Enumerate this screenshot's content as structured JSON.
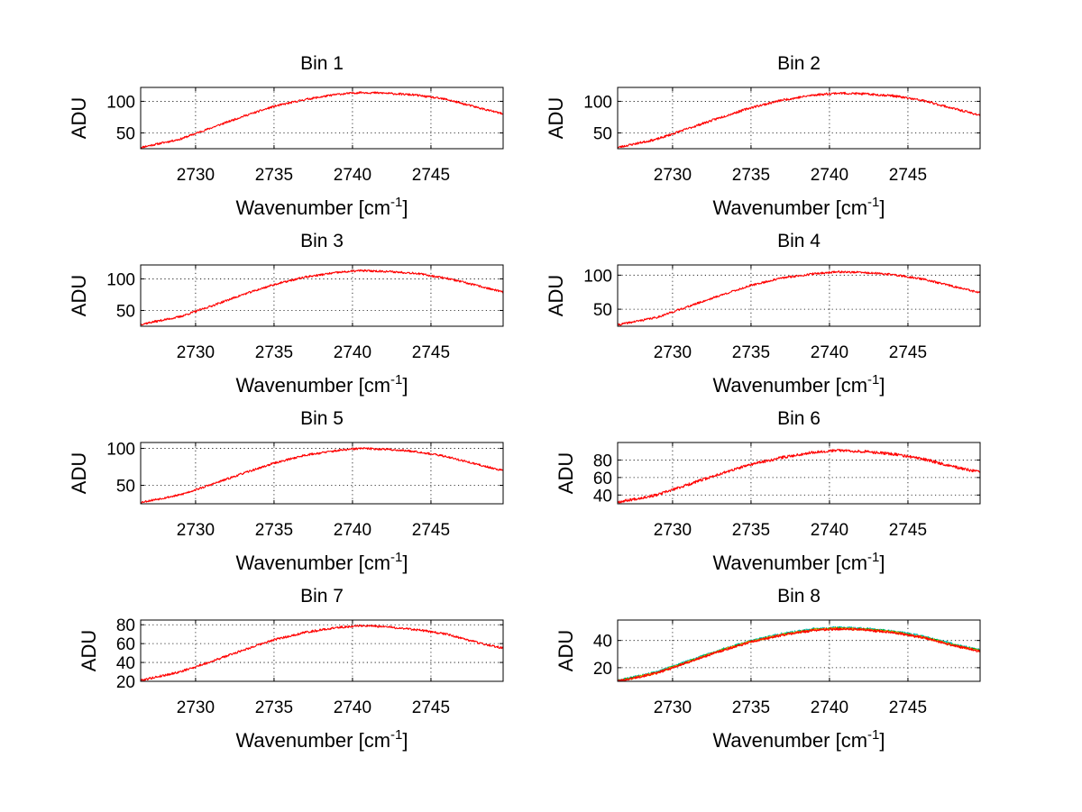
{
  "chart_data": [
    {
      "type": "line",
      "title": "Bin 1",
      "xlabel": "Wavenumber [cm",
      "xlabel_sup": "-1",
      "xlabel_end": "]",
      "ylabel": "ADU",
      "xlim": [
        2726.5,
        2749.6
      ],
      "ylim": [
        25,
        122
      ],
      "xticks": [
        2730,
        2735,
        2740,
        2745
      ],
      "yticks": [
        50,
        100
      ],
      "grid": true,
      "series": [
        {
          "color": "#ff0000",
          "points": [
            [
              2726.5,
              27
            ],
            [
              2729,
              40
            ],
            [
              2731,
              58
            ],
            [
              2733,
              76
            ],
            [
              2735,
              92
            ],
            [
              2737,
              103
            ],
            [
              2739,
              111
            ],
            [
              2740.5,
              114
            ],
            [
              2742,
              113
            ],
            [
              2744,
              110
            ],
            [
              2746,
              103
            ],
            [
              2748,
              90
            ],
            [
              2749.6,
              80
            ]
          ],
          "noise": 1.6,
          "seed": 11
        }
      ]
    },
    {
      "type": "line",
      "title": "Bin 2",
      "xlabel": "Wavenumber [cm",
      "xlabel_sup": "-1",
      "xlabel_end": "]",
      "ylabel": "ADU",
      "xlim": [
        2726.5,
        2749.6
      ],
      "ylim": [
        25,
        122
      ],
      "xticks": [
        2730,
        2735,
        2740,
        2745
      ],
      "yticks": [
        50,
        100
      ],
      "grid": true,
      "series": [
        {
          "color": "#ff0000",
          "points": [
            [
              2726.5,
              27
            ],
            [
              2729,
              40
            ],
            [
              2731,
              57
            ],
            [
              2733,
              74
            ],
            [
              2735,
              90
            ],
            [
              2737,
              102
            ],
            [
              2739,
              110
            ],
            [
              2740.5,
              113
            ],
            [
              2742,
              112
            ],
            [
              2744,
              109
            ],
            [
              2746,
              101
            ],
            [
              2748,
              88
            ],
            [
              2749.6,
              78
            ]
          ],
          "noise": 1.8,
          "seed": 23
        }
      ]
    },
    {
      "type": "line",
      "title": "Bin 3",
      "xlabel": "Wavenumber [cm",
      "xlabel_sup": "-1",
      "xlabel_end": "]",
      "ylabel": "ADU",
      "xlim": [
        2726.5,
        2749.6
      ],
      "ylim": [
        25,
        122
      ],
      "xticks": [
        2730,
        2735,
        2740,
        2745
      ],
      "yticks": [
        50,
        100
      ],
      "grid": true,
      "series": [
        {
          "color": "#ff0000",
          "points": [
            [
              2726.5,
              28
            ],
            [
              2729,
              40
            ],
            [
              2731,
              57
            ],
            [
              2733,
              75
            ],
            [
              2735,
              91
            ],
            [
              2737,
              103
            ],
            [
              2739,
              110
            ],
            [
              2740.5,
              113
            ],
            [
              2742,
              112
            ],
            [
              2744,
              109
            ],
            [
              2746,
              101
            ],
            [
              2748,
              89
            ],
            [
              2749.6,
              79
            ]
          ],
          "noise": 1.6,
          "seed": 37
        }
      ]
    },
    {
      "type": "line",
      "title": "Bin 4",
      "xlabel": "Wavenumber [cm",
      "xlabel_sup": "-1",
      "xlabel_end": "]",
      "ylabel": "ADU",
      "xlim": [
        2726.5,
        2749.6
      ],
      "ylim": [
        25,
        115
      ],
      "xticks": [
        2730,
        2735,
        2740,
        2745
      ],
      "yticks": [
        50,
        100
      ],
      "grid": true,
      "series": [
        {
          "color": "#ff0000",
          "points": [
            [
              2726.5,
              27
            ],
            [
              2729,
              38
            ],
            [
              2731,
              54
            ],
            [
              2733,
              70
            ],
            [
              2735,
              85
            ],
            [
              2737,
              96
            ],
            [
              2739,
              102
            ],
            [
              2740.5,
              105
            ],
            [
              2742,
              104
            ],
            [
              2744,
              101
            ],
            [
              2746,
              94
            ],
            [
              2748,
              83
            ],
            [
              2749.6,
              74
            ]
          ],
          "noise": 1.5,
          "seed": 41
        }
      ]
    },
    {
      "type": "line",
      "title": "Bin 5",
      "xlabel": "Wavenumber [cm",
      "xlabel_sup": "-1",
      "xlabel_end": "]",
      "ylabel": "ADU",
      "xlim": [
        2726.5,
        2749.6
      ],
      "ylim": [
        25,
        108
      ],
      "xticks": [
        2730,
        2735,
        2740,
        2745
      ],
      "yticks": [
        50,
        100
      ],
      "grid": true,
      "series": [
        {
          "color": "#ff0000",
          "points": [
            [
              2726.5,
              27
            ],
            [
              2729,
              37
            ],
            [
              2731,
              51
            ],
            [
              2733,
              66
            ],
            [
              2735,
              80
            ],
            [
              2737,
              91
            ],
            [
              2739,
              97
            ],
            [
              2740.5,
              100
            ],
            [
              2742,
              99
            ],
            [
              2744,
              96
            ],
            [
              2746,
              89
            ],
            [
              2748,
              78
            ],
            [
              2749.6,
              70
            ]
          ],
          "noise": 1.4,
          "seed": 53
        }
      ]
    },
    {
      "type": "line",
      "title": "Bin 6",
      "xlabel": "Wavenumber [cm",
      "xlabel_sup": "-1",
      "xlabel_end": "]",
      "ylabel": "ADU",
      "xlim": [
        2726.5,
        2749.6
      ],
      "ylim": [
        30,
        100
      ],
      "xticks": [
        2730,
        2735,
        2740,
        2745
      ],
      "yticks": [
        40,
        60,
        80
      ],
      "grid": true,
      "series": [
        {
          "color": "#ff0000",
          "points": [
            [
              2726.5,
              32
            ],
            [
              2729,
              40
            ],
            [
              2731,
              52
            ],
            [
              2733,
              64
            ],
            [
              2735,
              75
            ],
            [
              2737,
              83
            ],
            [
              2739,
              89
            ],
            [
              2740.5,
              91
            ],
            [
              2742,
              90
            ],
            [
              2744,
              87
            ],
            [
              2746,
              81
            ],
            [
              2748,
              72
            ],
            [
              2749.6,
              66
            ]
          ],
          "noise": 1.6,
          "seed": 67
        }
      ]
    },
    {
      "type": "line",
      "title": "Bin 7",
      "xlabel": "Wavenumber [cm",
      "xlabel_sup": "-1",
      "xlabel_end": "]",
      "ylabel": "ADU",
      "xlim": [
        2726.5,
        2749.6
      ],
      "ylim": [
        20,
        85
      ],
      "xticks": [
        2730,
        2735,
        2740,
        2745
      ],
      "yticks": [
        20,
        40,
        60,
        80
      ],
      "grid": true,
      "series": [
        {
          "color": "#ff0000",
          "points": [
            [
              2726.5,
              21
            ],
            [
              2729,
              30
            ],
            [
              2731,
              41
            ],
            [
              2733,
              53
            ],
            [
              2735,
              64
            ],
            [
              2737,
              72
            ],
            [
              2739,
              77
            ],
            [
              2740.5,
              79
            ],
            [
              2742,
              78
            ],
            [
              2744,
              75
            ],
            [
              2746,
              70
            ],
            [
              2748,
              61
            ],
            [
              2749.6,
              55
            ]
          ],
          "noise": 1.2,
          "seed": 79
        }
      ]
    },
    {
      "type": "line",
      "title": "Bin 8",
      "xlabel": "Wavenumber [cm",
      "xlabel_sup": "-1",
      "xlabel_end": "]",
      "ylabel": "ADU",
      "xlim": [
        2726.5,
        2749.6
      ],
      "ylim": [
        10,
        55
      ],
      "xticks": [
        2730,
        2735,
        2740,
        2745
      ],
      "yticks": [
        20,
        40
      ],
      "grid": true,
      "series": [
        {
          "color": "#00bfbf",
          "points": [
            [
              2726.5,
              10.5
            ],
            [
              2729,
              17
            ],
            [
              2731,
              25
            ],
            [
              2733,
              33
            ],
            [
              2735,
              40
            ],
            [
              2737,
              45
            ],
            [
              2739,
              48.5
            ],
            [
              2740.5,
              49.5
            ],
            [
              2742,
              49
            ],
            [
              2744,
              47
            ],
            [
              2746,
              43
            ],
            [
              2748,
              37
            ],
            [
              2749.6,
              33
            ]
          ],
          "noise": 0.8,
          "seed": 83
        },
        {
          "color": "#00aa00",
          "points": [
            [
              2726.5,
              10.3
            ],
            [
              2729,
              16.5
            ],
            [
              2731,
              24.5
            ],
            [
              2733,
              32.5
            ],
            [
              2735,
              39.5
            ],
            [
              2737,
              44.5
            ],
            [
              2739,
              48
            ],
            [
              2740.5,
              49
            ],
            [
              2742,
              48.5
            ],
            [
              2744,
              46.5
            ],
            [
              2746,
              42.5
            ],
            [
              2748,
              36.5
            ],
            [
              2749.6,
              32.5
            ]
          ],
          "noise": 0.8,
          "seed": 89
        },
        {
          "color": "#ff8c00",
          "points": [
            [
              2726.5,
              10.1
            ],
            [
              2729,
              16.2
            ],
            [
              2731,
              24.2
            ],
            [
              2733,
              32.2
            ],
            [
              2735,
              39.2
            ],
            [
              2737,
              44.2
            ],
            [
              2739,
              47.8
            ],
            [
              2740.5,
              48.8
            ],
            [
              2742,
              48.3
            ],
            [
              2744,
              46.3
            ],
            [
              2746,
              42.2
            ],
            [
              2748,
              36.2
            ],
            [
              2749.6,
              32.2
            ]
          ],
          "noise": 0.8,
          "seed": 97
        },
        {
          "color": "#ff0000",
          "points": [
            [
              2726.5,
              10
            ],
            [
              2729,
              16
            ],
            [
              2731,
              24
            ],
            [
              2733,
              32
            ],
            [
              2735,
              39
            ],
            [
              2737,
              44
            ],
            [
              2739,
              47.5
            ],
            [
              2740.5,
              48.5
            ],
            [
              2742,
              48
            ],
            [
              2744,
              46
            ],
            [
              2746,
              42
            ],
            [
              2748,
              36
            ],
            [
              2749.6,
              32
            ]
          ],
          "noise": 0.9,
          "seed": 101
        }
      ]
    }
  ]
}
